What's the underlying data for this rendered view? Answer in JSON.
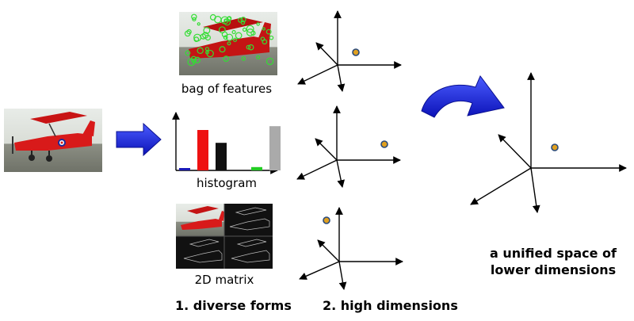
{
  "labels": {
    "bag_of_features": "bag of features",
    "histogram": "histogram",
    "matrix_2d": "2D matrix",
    "diverse_forms": "1. diverse forms",
    "high_dimensions": "2. high dimensions",
    "unified_line1": "a unified space of",
    "unified_line2": "lower dimensions"
  },
  "histogram": {
    "bars": [
      {
        "color": "#1a1ab8",
        "value": 0.05
      },
      {
        "color": "#ee1111",
        "value": 0.85
      },
      {
        "color": "#111111",
        "value": 0.58
      },
      {
        "color": "#22cc22",
        "value": 0.07
      },
      {
        "color": "#aaaaaa",
        "value": 0.93
      }
    ]
  },
  "colors": {
    "arrow_blue": "#1e24e6",
    "point_fill": "#e0a020",
    "point_stroke": "#2a4a7a",
    "plane_red": "#d81a1a"
  },
  "icons": [
    "airplane-photo",
    "feature-points-photo",
    "matrix-photo",
    "right-arrow-icon",
    "curved-arrow-icon"
  ]
}
